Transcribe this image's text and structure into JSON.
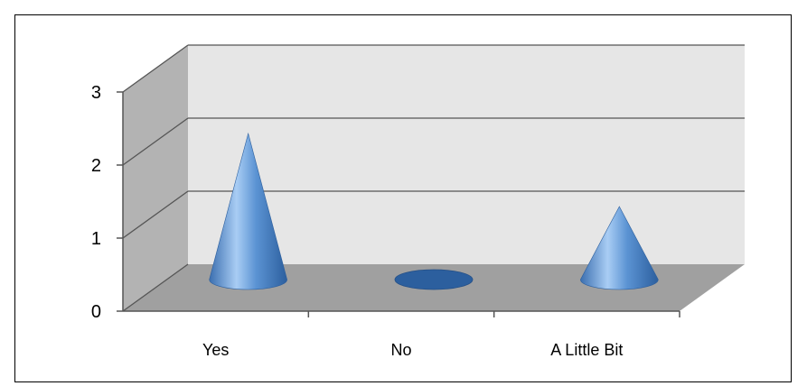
{
  "chart_data": {
    "type": "bar",
    "style": "3d-cone",
    "categories": [
      "Yes",
      "No",
      "A Little Bit"
    ],
    "values": [
      2,
      0,
      1
    ],
    "yticks": [
      "0",
      "1",
      "2",
      "3"
    ],
    "ylim": [
      0,
      3
    ],
    "grid": true,
    "legend": "none",
    "colors": {
      "cone_light": "#a9cdf4",
      "cone_mid": "#5b93d3",
      "cone_dark": "#2c5f9e",
      "back_wall": "#e6e6e6",
      "side_wall": "#b3b3b3",
      "floor": "#a0a0a0"
    }
  }
}
